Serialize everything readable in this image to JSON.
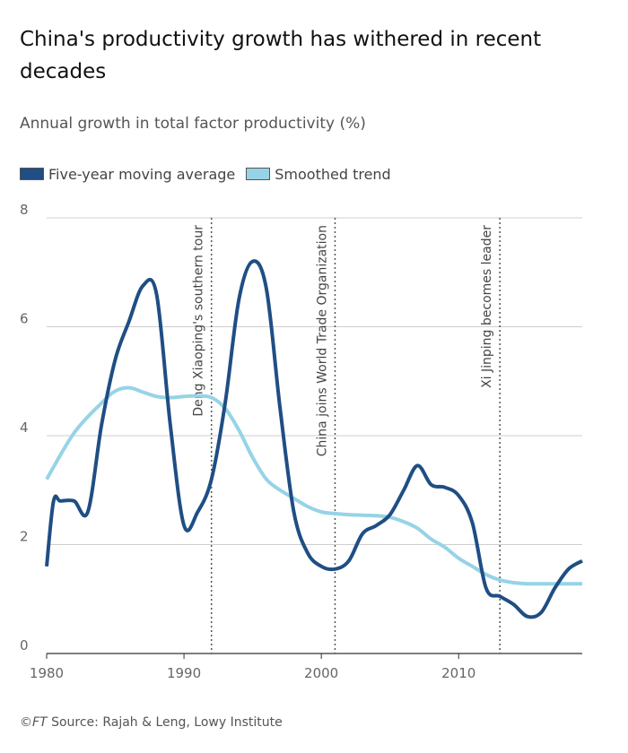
{
  "chart_data": {
    "type": "line",
    "title": "China's productivity growth has withered in recent decades",
    "subtitle": "Annual growth in total factor productivity (%)",
    "xlabel": "",
    "ylabel": "",
    "xlim": [
      1980,
      2019
    ],
    "ylim": [
      0,
      8
    ],
    "x_ticks": [
      1980,
      1990,
      2000,
      2010
    ],
    "y_ticks": [
      0,
      2,
      4,
      6,
      8
    ],
    "grid": true,
    "legend_position": "top-left",
    "series": [
      {
        "name": "Five-year moving average",
        "color": "#1f4e84",
        "x": [
          1980,
          1980.5,
          1981,
          1982,
          1983,
          1984,
          1985,
          1986,
          1987,
          1988,
          1989,
          1990,
          1991,
          1992,
          1993,
          1994,
          1995,
          1996,
          1997,
          1998,
          1999,
          2000,
          2001,
          2002,
          2003,
          2004,
          2005,
          2006,
          2007,
          2008,
          2009,
          2010,
          2011,
          2012,
          2013,
          2014,
          2015,
          2016,
          2017,
          2018,
          2019
        ],
        "values": [
          1.6,
          2.8,
          2.8,
          2.8,
          2.6,
          4.2,
          5.4,
          6.1,
          6.75,
          6.6,
          4.2,
          2.35,
          2.6,
          3.2,
          4.6,
          6.5,
          7.2,
          6.7,
          4.5,
          2.6,
          1.85,
          1.6,
          1.55,
          1.7,
          2.2,
          2.35,
          2.55,
          3.0,
          3.45,
          3.1,
          3.05,
          2.9,
          2.4,
          1.2,
          1.05,
          0.9,
          0.68,
          0.75,
          1.2,
          1.55,
          1.7
        ]
      },
      {
        "name": "Smoothed trend",
        "color": "#96d3e6",
        "x": [
          1980,
          1982,
          1984,
          1985,
          1986,
          1987,
          1988,
          1989,
          1990,
          1991,
          1992,
          1993,
          1994,
          1995,
          1996,
          1997,
          1998,
          1999,
          2000,
          2001,
          2002,
          2004,
          2005,
          2006,
          2007,
          2008,
          2009,
          2010,
          2011,
          2012,
          2013,
          2014,
          2015,
          2017,
          2019
        ],
        "values": [
          3.2,
          4.05,
          4.6,
          4.82,
          4.88,
          4.8,
          4.72,
          4.7,
          4.72,
          4.73,
          4.7,
          4.5,
          4.1,
          3.6,
          3.2,
          3.0,
          2.85,
          2.7,
          2.6,
          2.57,
          2.55,
          2.53,
          2.5,
          2.42,
          2.3,
          2.1,
          1.95,
          1.75,
          1.6,
          1.45,
          1.35,
          1.3,
          1.28,
          1.28,
          1.28
        ]
      }
    ],
    "annotations": [
      {
        "x": 1992,
        "text": "Deng Xiaoping's southern tour"
      },
      {
        "x": 2001,
        "text": "China joins World Trade Organization"
      },
      {
        "x": 2013,
        "text": "Xi Jinping becomes leader"
      }
    ]
  },
  "source": {
    "copyright": "©FT",
    "text": "Source: Rajah & Leng, Lowy Institute"
  }
}
